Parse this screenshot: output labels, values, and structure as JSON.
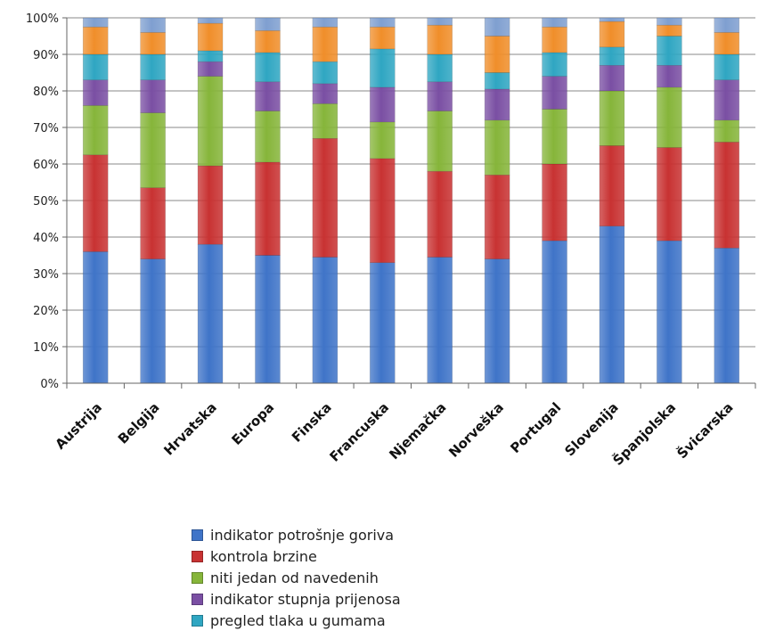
{
  "chart_data": {
    "type": "bar",
    "stacked": true,
    "percent": true,
    "categories": [
      "Austrija",
      "Belgija",
      "Hrvatska",
      "Europa",
      "Finska",
      "Francuska",
      "Njemačka",
      "Norveška",
      "Portugal",
      "Slovenija",
      "Španjolska",
      "Švicarska"
    ],
    "ylim": [
      0,
      100
    ],
    "yticks": [
      "0%",
      "10%",
      "20%",
      "30%",
      "40%",
      "50%",
      "60%",
      "70%",
      "80%",
      "90%",
      "100%"
    ],
    "grid": true,
    "legend_position": "bottom",
    "series": [
      {
        "name": "indikator potrošnje goriva",
        "color": "#3f74c8",
        "values": [
          36,
          34,
          38,
          35,
          34.5,
          33,
          34.5,
          34,
          39,
          43,
          39,
          37
        ]
      },
      {
        "name": "kontrola brzine",
        "color": "#c83232",
        "values": [
          26.5,
          19.5,
          21.5,
          25.5,
          32.5,
          28.5,
          23.5,
          23,
          21,
          22,
          25.5,
          29
        ]
      },
      {
        "name": "niti jedan od navedenih",
        "color": "#86b53a",
        "values": [
          13.5,
          20.5,
          24.5,
          14,
          9.5,
          10,
          16.5,
          15,
          15,
          15,
          16.5,
          6
        ]
      },
      {
        "name": "indikator stupnja prijenosa",
        "color": "#7a4fa3",
        "values": [
          7,
          9,
          4,
          8,
          5.5,
          9.5,
          8,
          8.5,
          9,
          7,
          6,
          11
        ]
      },
      {
        "name": "pregled tlaka u gumama",
        "color": "#2fa6c2",
        "values": [
          7,
          7,
          3,
          8,
          6,
          10.5,
          7.5,
          4.5,
          6.5,
          5,
          8,
          7
        ]
      },
      {
        "name": "",
        "color": "#f08e2a",
        "values": [
          7.5,
          6,
          7.5,
          6,
          9.5,
          6,
          8,
          10,
          7,
          7,
          3,
          6
        ]
      },
      {
        "name": "",
        "color": "#7f9fd0",
        "values": [
          2.5,
          4,
          1.5,
          3.5,
          2.5,
          2.5,
          2,
          5,
          2.5,
          1,
          2,
          4
        ]
      }
    ]
  }
}
